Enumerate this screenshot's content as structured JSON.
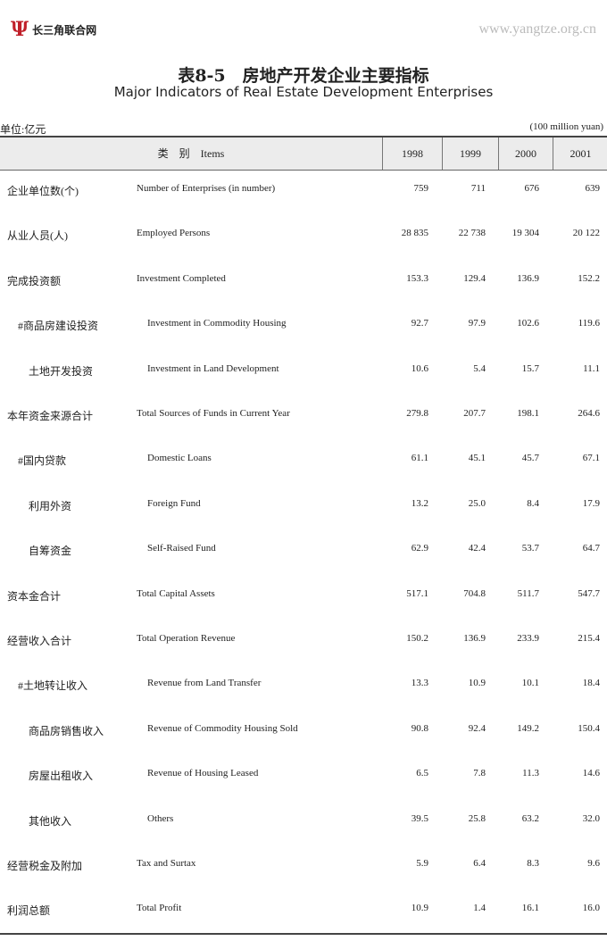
{
  "logo": {
    "mark": "Ψ",
    "text": "长三角联合网",
    "color": "#c0202a"
  },
  "title_cn": "表8-5　房地产开发企业主要指标",
  "title_en": "Major Indicators of Real Estate Development Enterprises",
  "unit_cn": "单位:亿元",
  "unit_en": "(100 million yuan)",
  "header": {
    "items": "类　别　Items",
    "years": [
      "1998",
      "1999",
      "2000",
      "2001"
    ]
  },
  "rows": [
    {
      "cn": "企业单位数(个)",
      "en": "Number of Enterprises (in number)",
      "indent": false,
      "values": [
        "759",
        "711",
        "676",
        "639"
      ]
    },
    {
      "cn": "从业人员(人)",
      "en": "Employed Persons",
      "indent": false,
      "values": [
        "28 835",
        "22 738",
        "19 304",
        "20 122"
      ]
    },
    {
      "cn": "完成投资额",
      "en": "Investment Completed",
      "indent": false,
      "values": [
        "153.3",
        "129.4",
        "136.9",
        "152.2"
      ]
    },
    {
      "cn": "#商品房建设投资",
      "en": "Investment in Commodity Housing",
      "indent": true,
      "values": [
        "92.7",
        "97.9",
        "102.6",
        "119.6"
      ]
    },
    {
      "cn": "土地开发投资",
      "en": "Investment in Land Development",
      "indent": true,
      "values": [
        "10.6",
        "5.4",
        "15.7",
        "11.1"
      ]
    },
    {
      "cn": "本年资金来源合计",
      "en": "Total Sources of Funds in Current Year",
      "indent": false,
      "values": [
        "279.8",
        "207.7",
        "198.1",
        "264.6"
      ]
    },
    {
      "cn": "#国内贷款",
      "en": "Domestic Loans",
      "indent": true,
      "values": [
        "61.1",
        "45.1",
        "45.7",
        "67.1"
      ]
    },
    {
      "cn": "利用外资",
      "en": "Foreign Fund",
      "indent": true,
      "values": [
        "13.2",
        "25.0",
        "8.4",
        "17.9"
      ]
    },
    {
      "cn": "自筹资金",
      "en": "Self-Raised Fund",
      "indent": true,
      "values": [
        "62.9",
        "42.4",
        "53.7",
        "64.7"
      ]
    },
    {
      "cn": "资本金合计",
      "en": "Total Capital Assets",
      "indent": false,
      "values": [
        "517.1",
        "704.8",
        "511.7",
        "547.7"
      ]
    },
    {
      "cn": "经营收入合计",
      "en": "Total Operation Revenue",
      "indent": false,
      "values": [
        "150.2",
        "136.9",
        "233.9",
        "215.4"
      ]
    },
    {
      "cn": "#土地转让收入",
      "en": "Revenue from Land Transfer",
      "indent": true,
      "values": [
        "13.3",
        "10.9",
        "10.1",
        "18.4"
      ]
    },
    {
      "cn": "商品房销售收入",
      "en": "Revenue of Commodity Housing Sold",
      "indent": true,
      "values": [
        "90.8",
        "92.4",
        "149.2",
        "150.4"
      ]
    },
    {
      "cn": "房屋出租收入",
      "en": "Revenue of Housing Leased",
      "indent": true,
      "values": [
        "6.5",
        "7.8",
        "11.3",
        "14.6"
      ]
    },
    {
      "cn": "其他收入",
      "en": "Others",
      "indent": true,
      "values": [
        "39.5",
        "25.8",
        "63.2",
        "32.0"
      ]
    },
    {
      "cn": "经营税金及附加",
      "en": "Tax and Surtax",
      "indent": false,
      "values": [
        "5.9",
        "6.4",
        "8.3",
        "9.6"
      ]
    },
    {
      "cn": "利润总额",
      "en": "Total Profit",
      "indent": false,
      "values": [
        "10.9",
        "1.4",
        "16.1",
        "16.0"
      ]
    }
  ],
  "watermark": "www.yangtze.org.cn"
}
